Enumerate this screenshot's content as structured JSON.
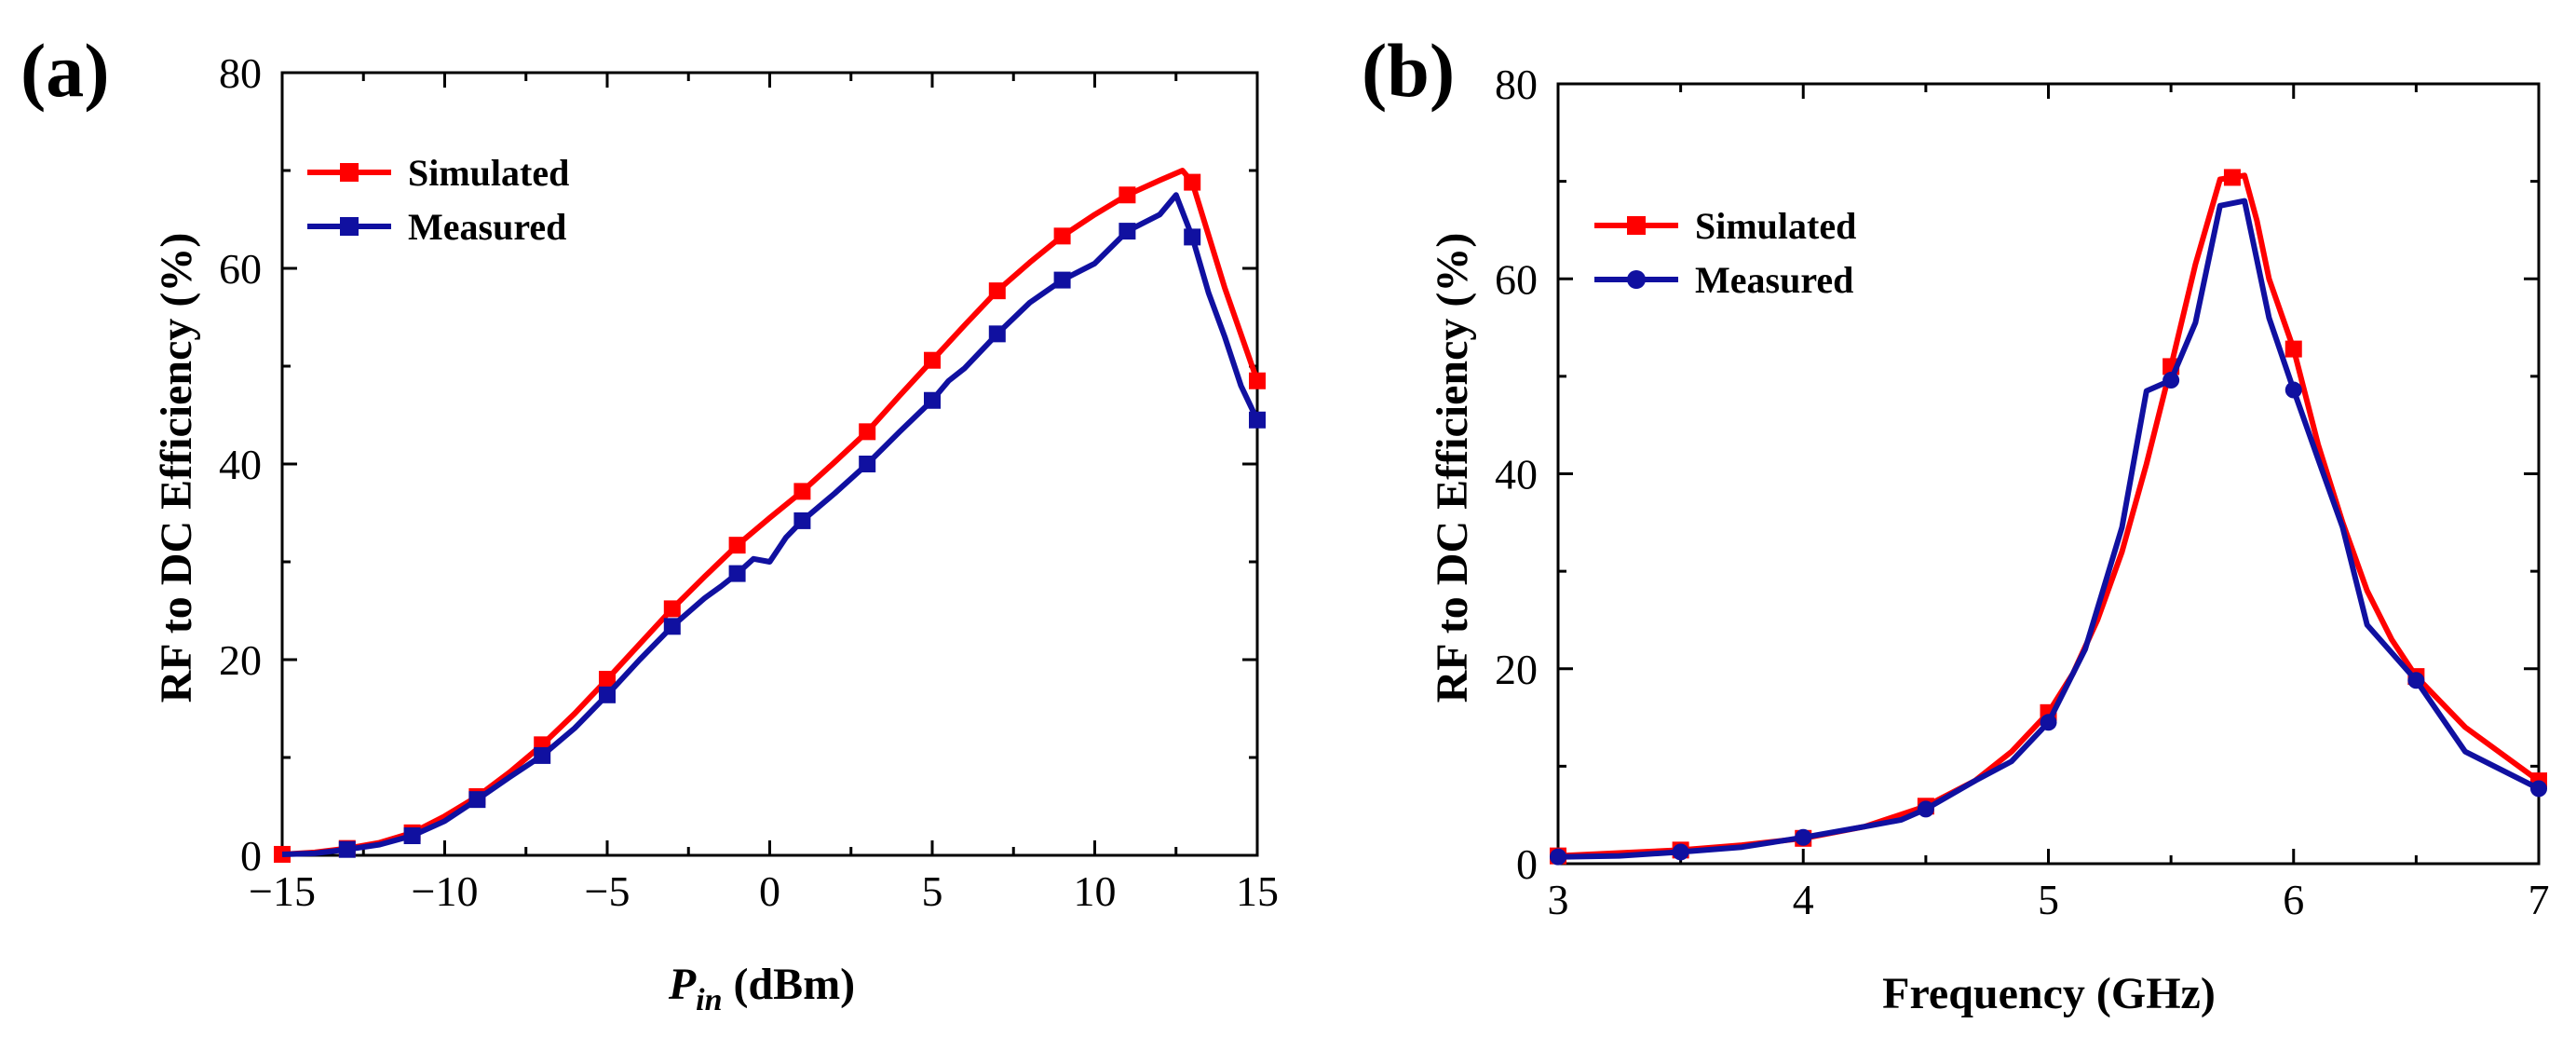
{
  "figure": {
    "panels": [
      {
        "label": "(a)",
        "xlabel_main": "P",
        "xlabel_sub": "in",
        "xlabel_unit": " (dBm)",
        "ylabel": "RF to DC Efficiency (%)"
      },
      {
        "label": "(b)",
        "xlabel": "Frequency (GHz)",
        "ylabel": "RF to DC Efficiency (%)"
      }
    ]
  },
  "chart_data": [
    {
      "type": "line",
      "title": "",
      "xlabel": "P_in (dBm)",
      "ylabel": "RF to DC Efficiency (%)",
      "xlim": [
        -15,
        15
      ],
      "ylim": [
        0,
        80
      ],
      "xticks": [
        -15,
        -10,
        -5,
        0,
        5,
        10,
        15
      ],
      "xtick_labels": [
        "−15",
        "−10",
        "−5",
        "0",
        "5",
        "10",
        "15"
      ],
      "yticks": [
        0,
        20,
        40,
        60,
        80
      ],
      "ytick_labels": [
        "0",
        "20",
        "40",
        "60",
        "80"
      ],
      "legend_position": "top-left",
      "series": [
        {
          "name": "Simulated",
          "color": "#ff0000",
          "marker": "square",
          "x": [
            -15,
            -14,
            -13,
            -12,
            -11,
            -10,
            -9,
            -8,
            -7,
            -6,
            -5,
            -4,
            -3,
            -2,
            -1,
            0,
            1,
            2,
            3,
            4,
            5,
            6,
            7,
            8,
            9,
            10,
            11,
            12,
            12.7,
            13,
            14,
            15
          ],
          "y": [
            0.1,
            0.3,
            0.7,
            1.3,
            2.3,
            4.0,
            6.0,
            8.5,
            11.3,
            14.5,
            18.0,
            21.6,
            25.2,
            28.5,
            31.7,
            34.5,
            37.2,
            40.2,
            43.3,
            47.0,
            50.6,
            54.2,
            57.7,
            60.6,
            63.3,
            65.5,
            67.5,
            69.0,
            70.0,
            68.8,
            58.0,
            48.5
          ],
          "marker_x": [
            -15,
            -13,
            -11,
            -9,
            -7,
            -5,
            -3,
            -1,
            1,
            3,
            5,
            7,
            9,
            11,
            13,
            15
          ],
          "marker_y": [
            0.1,
            0.7,
            2.3,
            6.0,
            11.3,
            18.0,
            25.2,
            31.7,
            37.2,
            43.3,
            50.6,
            57.7,
            63.3,
            67.5,
            68.8,
            48.5
          ]
        },
        {
          "name": "Measured",
          "color": "#1010a0",
          "marker": "square",
          "x": [
            -15,
            -14,
            -13,
            -12,
            -11,
            -10,
            -9,
            -8,
            -7,
            -6,
            -5,
            -4,
            -3,
            -2,
            -1.5,
            -1,
            -0.5,
            0,
            0.5,
            1,
            2,
            3,
            4,
            5,
            5.5,
            6,
            7,
            8,
            9,
            10,
            11,
            12,
            12.5,
            13,
            13.5,
            14,
            14.5,
            15
          ],
          "y": [
            0.1,
            0.2,
            0.6,
            1.1,
            2.0,
            3.5,
            5.7,
            8.0,
            10.2,
            13.0,
            16.4,
            20.0,
            23.4,
            26.3,
            27.5,
            28.8,
            30.3,
            30.0,
            32.5,
            34.2,
            37.0,
            40.0,
            43.3,
            46.5,
            48.5,
            49.8,
            53.3,
            56.5,
            58.8,
            60.5,
            63.8,
            65.5,
            67.5,
            63.2,
            57.5,
            53.0,
            48.0,
            44.5
          ],
          "marker_x": [
            -13,
            -11,
            -9,
            -7,
            -5,
            -3,
            -1,
            1,
            3,
            5,
            7,
            9,
            11,
            13,
            15
          ],
          "marker_y": [
            0.6,
            2.0,
            5.7,
            10.2,
            16.4,
            23.4,
            28.8,
            34.2,
            40.0,
            46.5,
            53.3,
            58.8,
            63.8,
            63.2,
            44.5
          ]
        }
      ]
    },
    {
      "type": "line",
      "title": "",
      "xlabel": "Frequency (GHz)",
      "ylabel": "RF to DC Efficiency (%)",
      "xlim": [
        3,
        7
      ],
      "ylim": [
        0,
        80
      ],
      "xticks": [
        3,
        4,
        5,
        6,
        7
      ],
      "xtick_labels": [
        "3",
        "4",
        "5",
        "6",
        "7"
      ],
      "yticks": [
        0,
        20,
        40,
        60,
        80
      ],
      "ytick_labels": [
        "0",
        "20",
        "40",
        "60",
        "80"
      ],
      "legend_position": "top-left",
      "series": [
        {
          "name": "Simulated",
          "color": "#ff0000",
          "marker": "square",
          "x": [
            3,
            3.25,
            3.5,
            3.75,
            4,
            4.25,
            4.5,
            4.7,
            4.85,
            5,
            5.1,
            5.2,
            5.3,
            5.4,
            5.5,
            5.6,
            5.7,
            5.8,
            5.85,
            5.9,
            6,
            6.1,
            6.2,
            6.3,
            6.4,
            6.5,
            6.7,
            7
          ],
          "y": [
            0.8,
            1.1,
            1.4,
            1.9,
            2.6,
            3.8,
            5.9,
            8.5,
            11.5,
            15.5,
            19.5,
            25.0,
            32.0,
            41.0,
            51.0,
            61.5,
            70.2,
            70.6,
            66.0,
            60.0,
            52.8,
            43.0,
            35.0,
            28.0,
            23.0,
            19.2,
            14.0,
            8.5
          ],
          "marker_x": [
            3,
            3.5,
            4,
            4.5,
            5,
            5.5,
            5.75,
            6,
            6.5,
            7
          ],
          "marker_y": [
            0.8,
            1.4,
            2.6,
            5.9,
            15.5,
            51.0,
            70.4,
            52.8,
            19.2,
            8.5
          ]
        },
        {
          "name": "Measured",
          "color": "#1010a0",
          "marker": "circle",
          "x": [
            3,
            3.25,
            3.5,
            3.75,
            4,
            4.25,
            4.4,
            4.5,
            4.7,
            4.85,
            5,
            5.15,
            5.3,
            5.4,
            5.5,
            5.6,
            5.7,
            5.8,
            5.9,
            6,
            6.1,
            6.2,
            6.3,
            6.5,
            6.7,
            7
          ],
          "y": [
            0.7,
            0.8,
            1.2,
            1.7,
            2.7,
            3.8,
            4.5,
            5.6,
            8.5,
            10.5,
            14.5,
            22.0,
            34.5,
            48.5,
            49.6,
            55.5,
            67.5,
            68.0,
            56.0,
            48.6,
            41.5,
            34.5,
            24.5,
            18.8,
            11.5,
            7.7
          ],
          "marker_x": [
            3,
            3.5,
            4,
            4.5,
            5,
            5.5,
            6,
            6.5,
            7
          ],
          "marker_y": [
            0.7,
            1.2,
            2.7,
            5.6,
            14.5,
            49.6,
            48.6,
            18.8,
            7.7
          ]
        }
      ]
    }
  ]
}
